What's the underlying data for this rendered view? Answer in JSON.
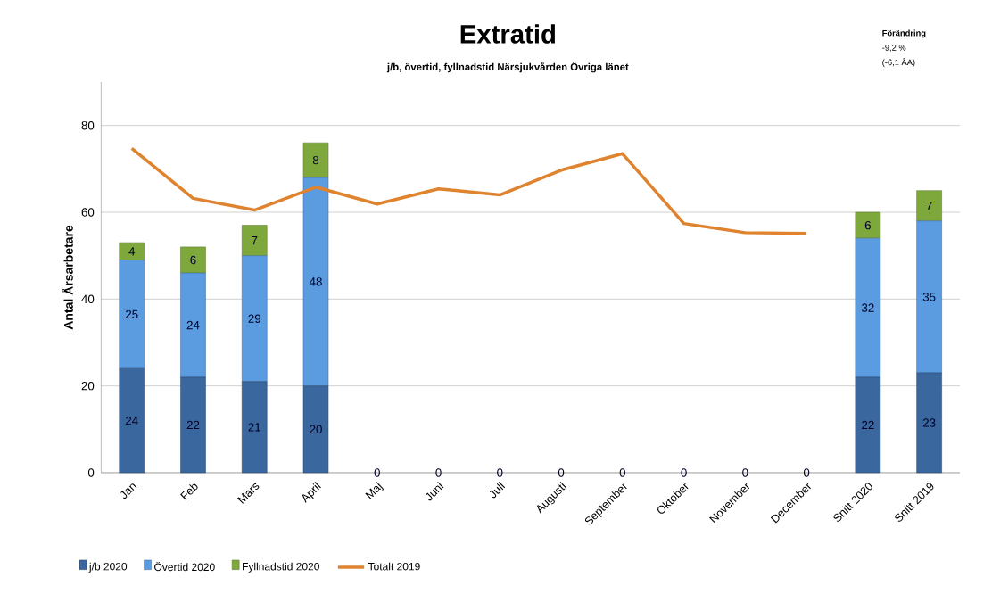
{
  "chart_data": {
    "type": "bar",
    "title": "Extratid",
    "subtitle": "j/b, övertid, fyllnadstid Närsjukvården Övriga länet",
    "ylabel": "Antal Årsarbetare",
    "annotations": [
      "Förändring",
      "-9,2 %",
      "(-6,1 ÅA)"
    ],
    "categories": [
      "Jan",
      "Feb",
      "Mars",
      "April",
      "Maj",
      "Juni",
      "Juli",
      "Augusti",
      "September",
      "Oktober",
      "November",
      "December",
      "Snitt 2020",
      "Snitt 2019"
    ],
    "stacked": true,
    "ylim": [
      0,
      90
    ],
    "yticks": [
      0,
      20,
      40,
      60,
      80
    ],
    "grid": "y",
    "legend": "bottom",
    "series": [
      {
        "name": "j/b 2020",
        "color": "#3a679e",
        "values": [
          24,
          22,
          21,
          20,
          0,
          0,
          0,
          0,
          0,
          0,
          0,
          0,
          22,
          23
        ],
        "value_labels": [
          "24",
          "22",
          "21",
          "20",
          "0",
          "0",
          "0",
          "0",
          "0",
          "0",
          "0",
          "0",
          "22",
          "23"
        ]
      },
      {
        "name": "Övertid 2020",
        "color": "#5b9be0",
        "values": [
          25,
          24,
          29,
          48,
          0,
          0,
          0,
          0,
          0,
          0,
          0,
          0,
          32,
          35
        ],
        "value_labels": [
          "25",
          "24",
          "29",
          "48",
          null,
          null,
          null,
          null,
          null,
          null,
          null,
          null,
          "32",
          "35"
        ]
      },
      {
        "name": "Fyllnadstid 2020",
        "color": "#7fa83c",
        "values": [
          4,
          6,
          7,
          8,
          0,
          0,
          0,
          0,
          0,
          0,
          0,
          0,
          6,
          7
        ],
        "value_labels": [
          "4",
          "6",
          "7",
          "8",
          null,
          null,
          null,
          null,
          null,
          null,
          null,
          null,
          "6",
          "7"
        ]
      },
      {
        "name": "Totalt 2019",
        "type": "line",
        "color": "#e0832f",
        "values": [
          74.7,
          63.2,
          60.5,
          65.8,
          61.9,
          65.4,
          64.0,
          69.7,
          73.5,
          57.4,
          55.3,
          55.1,
          null,
          null
        ]
      }
    ]
  }
}
